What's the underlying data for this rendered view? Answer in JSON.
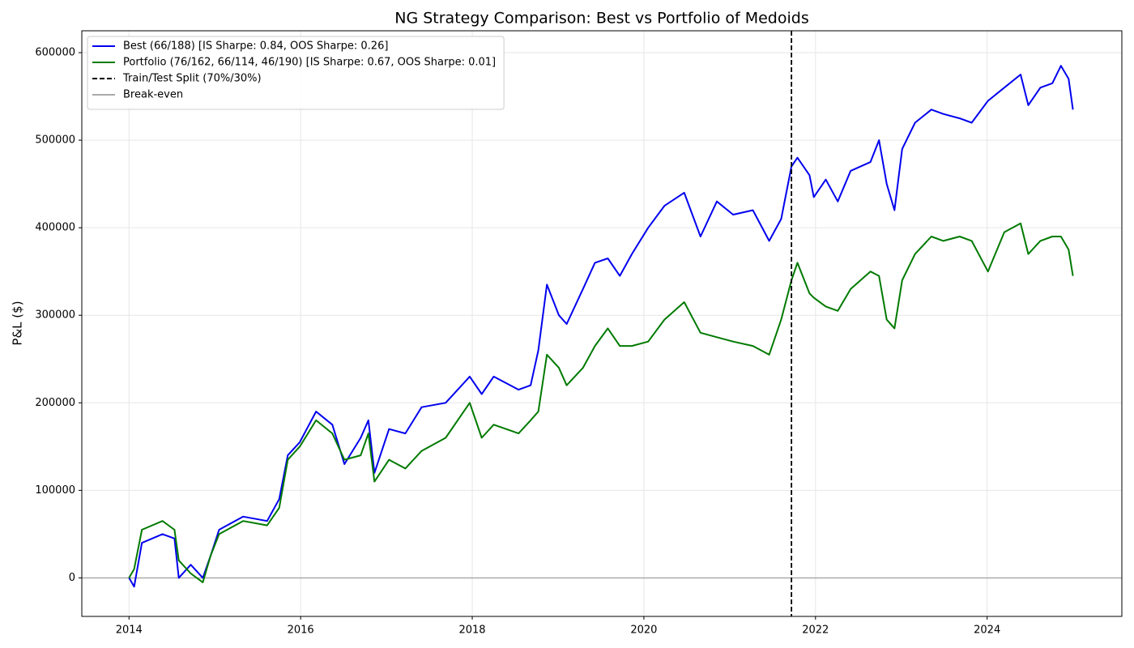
{
  "chart_data": {
    "type": "line",
    "title": "NG Strategy Comparison: Best vs Portfolio of Medoids",
    "y_label": "P&L ($)",
    "x": [
      2014.0,
      2014.06,
      2014.15,
      2014.39,
      2014.53,
      2014.58,
      2014.72,
      2014.86,
      2014.95,
      2015.05,
      2015.33,
      2015.61,
      2015.75,
      2015.85,
      2015.99,
      2016.18,
      2016.37,
      2016.51,
      2016.7,
      2016.79,
      2016.86,
      2017.03,
      2017.22,
      2017.41,
      2017.69,
      2017.97,
      2018.11,
      2018.25,
      2018.54,
      2018.68,
      2018.77,
      2018.87,
      2019.01,
      2019.1,
      2019.29,
      2019.43,
      2019.58,
      2019.72,
      2019.86,
      2020.05,
      2020.24,
      2020.47,
      2020.66,
      2020.85,
      2021.04,
      2021.27,
      2021.46,
      2021.6,
      2021.72,
      2021.79,
      2021.93,
      2021.98,
      2022.12,
      2022.26,
      2022.41,
      2022.64,
      2022.74,
      2022.83,
      2022.92,
      2023.01,
      2023.16,
      2023.35,
      2023.49,
      2023.68,
      2023.82,
      2024.01,
      2024.2,
      2024.39,
      2024.48,
      2024.62,
      2024.76,
      2024.86,
      2024.95,
      2025.0
    ],
    "series": [
      {
        "name": "Best (66/188) [IS Sharpe: 0.84, OOS Sharpe: 0.26]",
        "color": "#0000ee",
        "values": [
          0,
          -10000,
          40000,
          50000,
          45000,
          0,
          15000,
          0,
          25000,
          55000,
          70000,
          65000,
          90000,
          140000,
          155000,
          190000,
          175000,
          130000,
          160000,
          180000,
          120000,
          170000,
          165000,
          195000,
          200000,
          230000,
          210000,
          230000,
          215000,
          220000,
          260000,
          335000,
          300000,
          290000,
          330000,
          360000,
          365000,
          345000,
          370000,
          400000,
          425000,
          440000,
          390000,
          430000,
          415000,
          420000,
          385000,
          410000,
          470000,
          480000,
          460000,
          435000,
          455000,
          430000,
          465000,
          475000,
          500000,
          450000,
          420000,
          490000,
          520000,
          535000,
          530000,
          525000,
          520000,
          545000,
          560000,
          575000,
          540000,
          560000,
          565000,
          585000,
          570000,
          535000
        ]
      },
      {
        "name": "Portfolio (76/162, 66/114, 46/190) [IS Sharpe: 0.67, OOS Sharpe: 0.01]",
        "color": "#007a00",
        "values": [
          0,
          10000,
          55000,
          65000,
          55000,
          20000,
          5000,
          -5000,
          25000,
          50000,
          65000,
          60000,
          80000,
          135000,
          150000,
          180000,
          165000,
          135000,
          140000,
          165000,
          110000,
          135000,
          125000,
          145000,
          160000,
          200000,
          160000,
          175000,
          165000,
          180000,
          190000,
          255000,
          240000,
          220000,
          240000,
          265000,
          285000,
          265000,
          265000,
          270000,
          295000,
          315000,
          280000,
          275000,
          270000,
          265000,
          255000,
          295000,
          340000,
          360000,
          325000,
          320000,
          310000,
          305000,
          330000,
          350000,
          345000,
          295000,
          285000,
          340000,
          370000,
          390000,
          385000,
          390000,
          385000,
          350000,
          395000,
          405000,
          370000,
          385000,
          390000,
          390000,
          375000,
          345000
        ]
      }
    ],
    "vlines": [
      {
        "name": "Train/Test Split (70%/30%)",
        "x": 2021.72,
        "color": "#000000",
        "style": "dashed"
      }
    ],
    "hlines": [
      {
        "name": "Break-even",
        "y": 0,
        "color": "#aaaaaa",
        "style": "solid"
      }
    ],
    "xlim": [
      2013.45,
      2025.57
    ],
    "xticks": [
      2014,
      2016,
      2018,
      2020,
      2022,
      2024
    ],
    "ylim": [
      -44000,
      625000
    ],
    "yticks": [
      0,
      100000,
      200000,
      300000,
      400000,
      500000,
      600000
    ],
    "grid": true,
    "legend": "upper-left"
  }
}
